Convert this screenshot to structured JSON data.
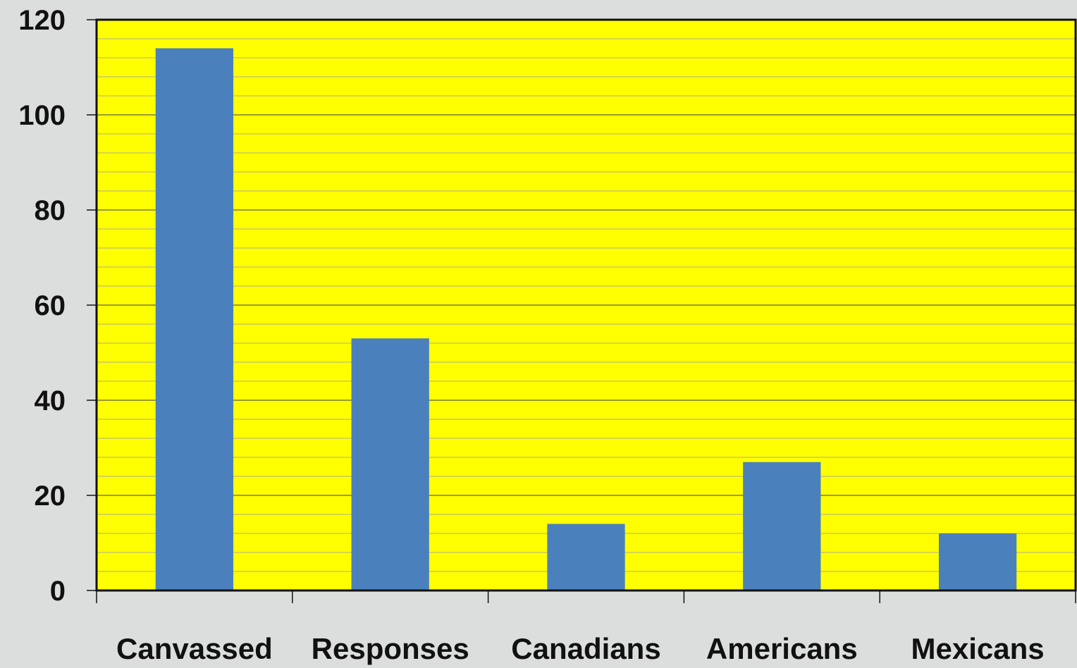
{
  "chart_data": {
    "type": "bar",
    "title": "",
    "xlabel": "",
    "ylabel": "",
    "categories": [
      "Canvassed",
      "Responses",
      "Canadians",
      "Americans",
      "Mexicans"
    ],
    "values": [
      114,
      53,
      14,
      27,
      12
    ],
    "ylim": [
      0,
      120
    ],
    "yticks": [
      0,
      20,
      40,
      60,
      80,
      100,
      120
    ],
    "major_grid_step": 20,
    "minor_grid_step": 4,
    "grid": true,
    "legend": "none",
    "colors": {
      "bar": "#4a81bd",
      "plot_background": "#ffff00",
      "page_background": "#dcdedd",
      "major_grid": "#7a7a40",
      "minor_grid": "#c8c860",
      "axis": "#111111"
    }
  }
}
